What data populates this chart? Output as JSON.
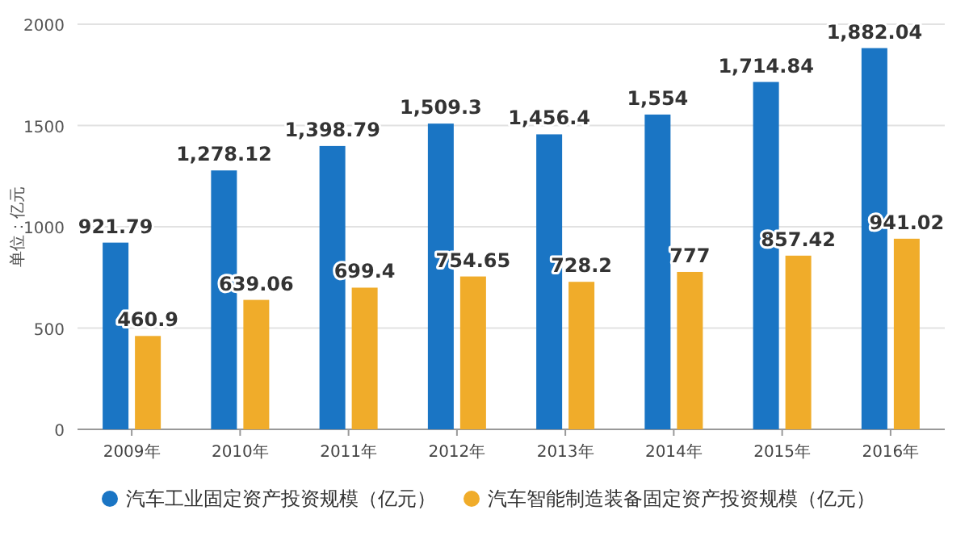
{
  "chart_data": {
    "type": "bar",
    "ylabel": "单位：亿元",
    "categories": [
      "2009年",
      "2010年",
      "2011年",
      "2012年",
      "2013年",
      "2014年",
      "2015年",
      "2016年"
    ],
    "series": [
      {
        "name": "汽车工业固定资产投资规模（亿元）",
        "color": "#1a75c4",
        "values": [
          921.79,
          1278.12,
          1398.79,
          1509.3,
          1456.4,
          1554,
          1714.84,
          1882.04
        ],
        "value_labels": [
          "921.79",
          "1,278.12",
          "1,398.79",
          "1,509.3",
          "1,456.4",
          "1,554",
          "1,714.84",
          "1,882.04"
        ]
      },
      {
        "name": "汽车智能制造装备固定资产投资规模（亿元）",
        "color": "#f0ac2a",
        "values": [
          460.9,
          639.06,
          699.4,
          754.65,
          728.2,
          777,
          857.42,
          941.02
        ],
        "value_labels": [
          "460.9",
          "639.06",
          "699.4",
          "754.65",
          "728.2",
          "777",
          "857.42",
          "941.02"
        ]
      }
    ],
    "ylim": [
      0,
      2000
    ],
    "yticks": [
      0,
      500,
      1000,
      1500,
      2000
    ],
    "grid": "y",
    "legend": "bottom"
  }
}
